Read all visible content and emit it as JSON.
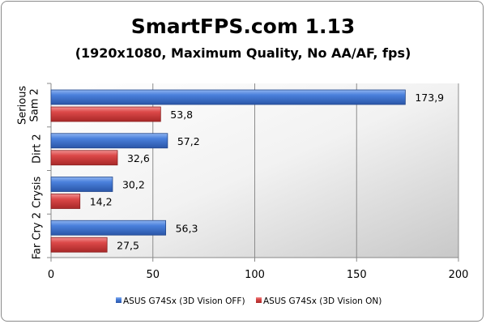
{
  "chart_data": {
    "type": "bar",
    "orientation": "horizontal",
    "title": "SmartFPS.com 1.13",
    "subtitle": "(1920x1080, Maximum Quality, No AA/AF, fps)",
    "categories": [
      "Serious Sam 2",
      "Dirt 2",
      "Crysis",
      "Far Cry 2"
    ],
    "series": [
      {
        "name": "ASUS G74Sx (3D Vision OFF)",
        "color": "#3a6fd0",
        "values": [
          173.9,
          57.2,
          30.2,
          56.3
        ],
        "labels": [
          "173,9",
          "57,2",
          "30,2",
          "56,3"
        ]
      },
      {
        "name": "ASUS G74Sx (3D Vision ON)",
        "color": "#d83a3a",
        "values": [
          53.8,
          32.6,
          14.2,
          27.5
        ],
        "labels": [
          "53,8",
          "32,6",
          "14,2",
          "27,5"
        ]
      }
    ],
    "xlim": [
      0,
      200
    ],
    "xticks": [
      0,
      50,
      100,
      150,
      200
    ],
    "xtick_labels": [
      "0",
      "50",
      "100",
      "150",
      "200"
    ],
    "xlabel": "",
    "ylabel": "",
    "grid": true,
    "legend_position": "bottom"
  }
}
